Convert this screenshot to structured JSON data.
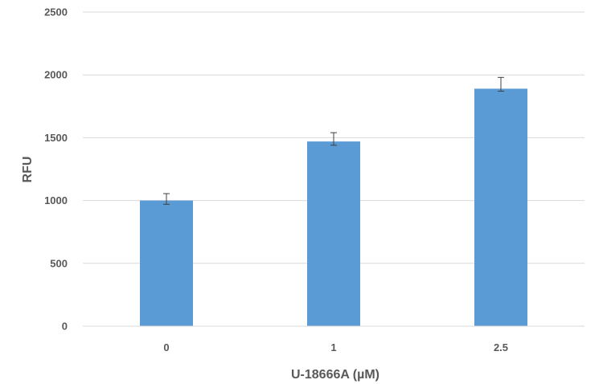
{
  "chart_data": {
    "type": "bar",
    "title": "",
    "xlabel": "U-18666A (µM)",
    "ylabel": "RFU",
    "categories": [
      "0",
      "1",
      "2.5"
    ],
    "values": [
      1000,
      1470,
      1890
    ],
    "error_plus": [
      55,
      70,
      90
    ],
    "error_minus": [
      30,
      30,
      20
    ],
    "ylim": [
      0,
      2500
    ],
    "yticks": [
      0,
      500,
      1000,
      1500,
      2000,
      2500
    ],
    "grid": true,
    "legend": "none",
    "bar_color": "#5b9bd5",
    "grid_color": "#d9d9d9",
    "text_color": "#595959",
    "error_color": "#404040"
  }
}
